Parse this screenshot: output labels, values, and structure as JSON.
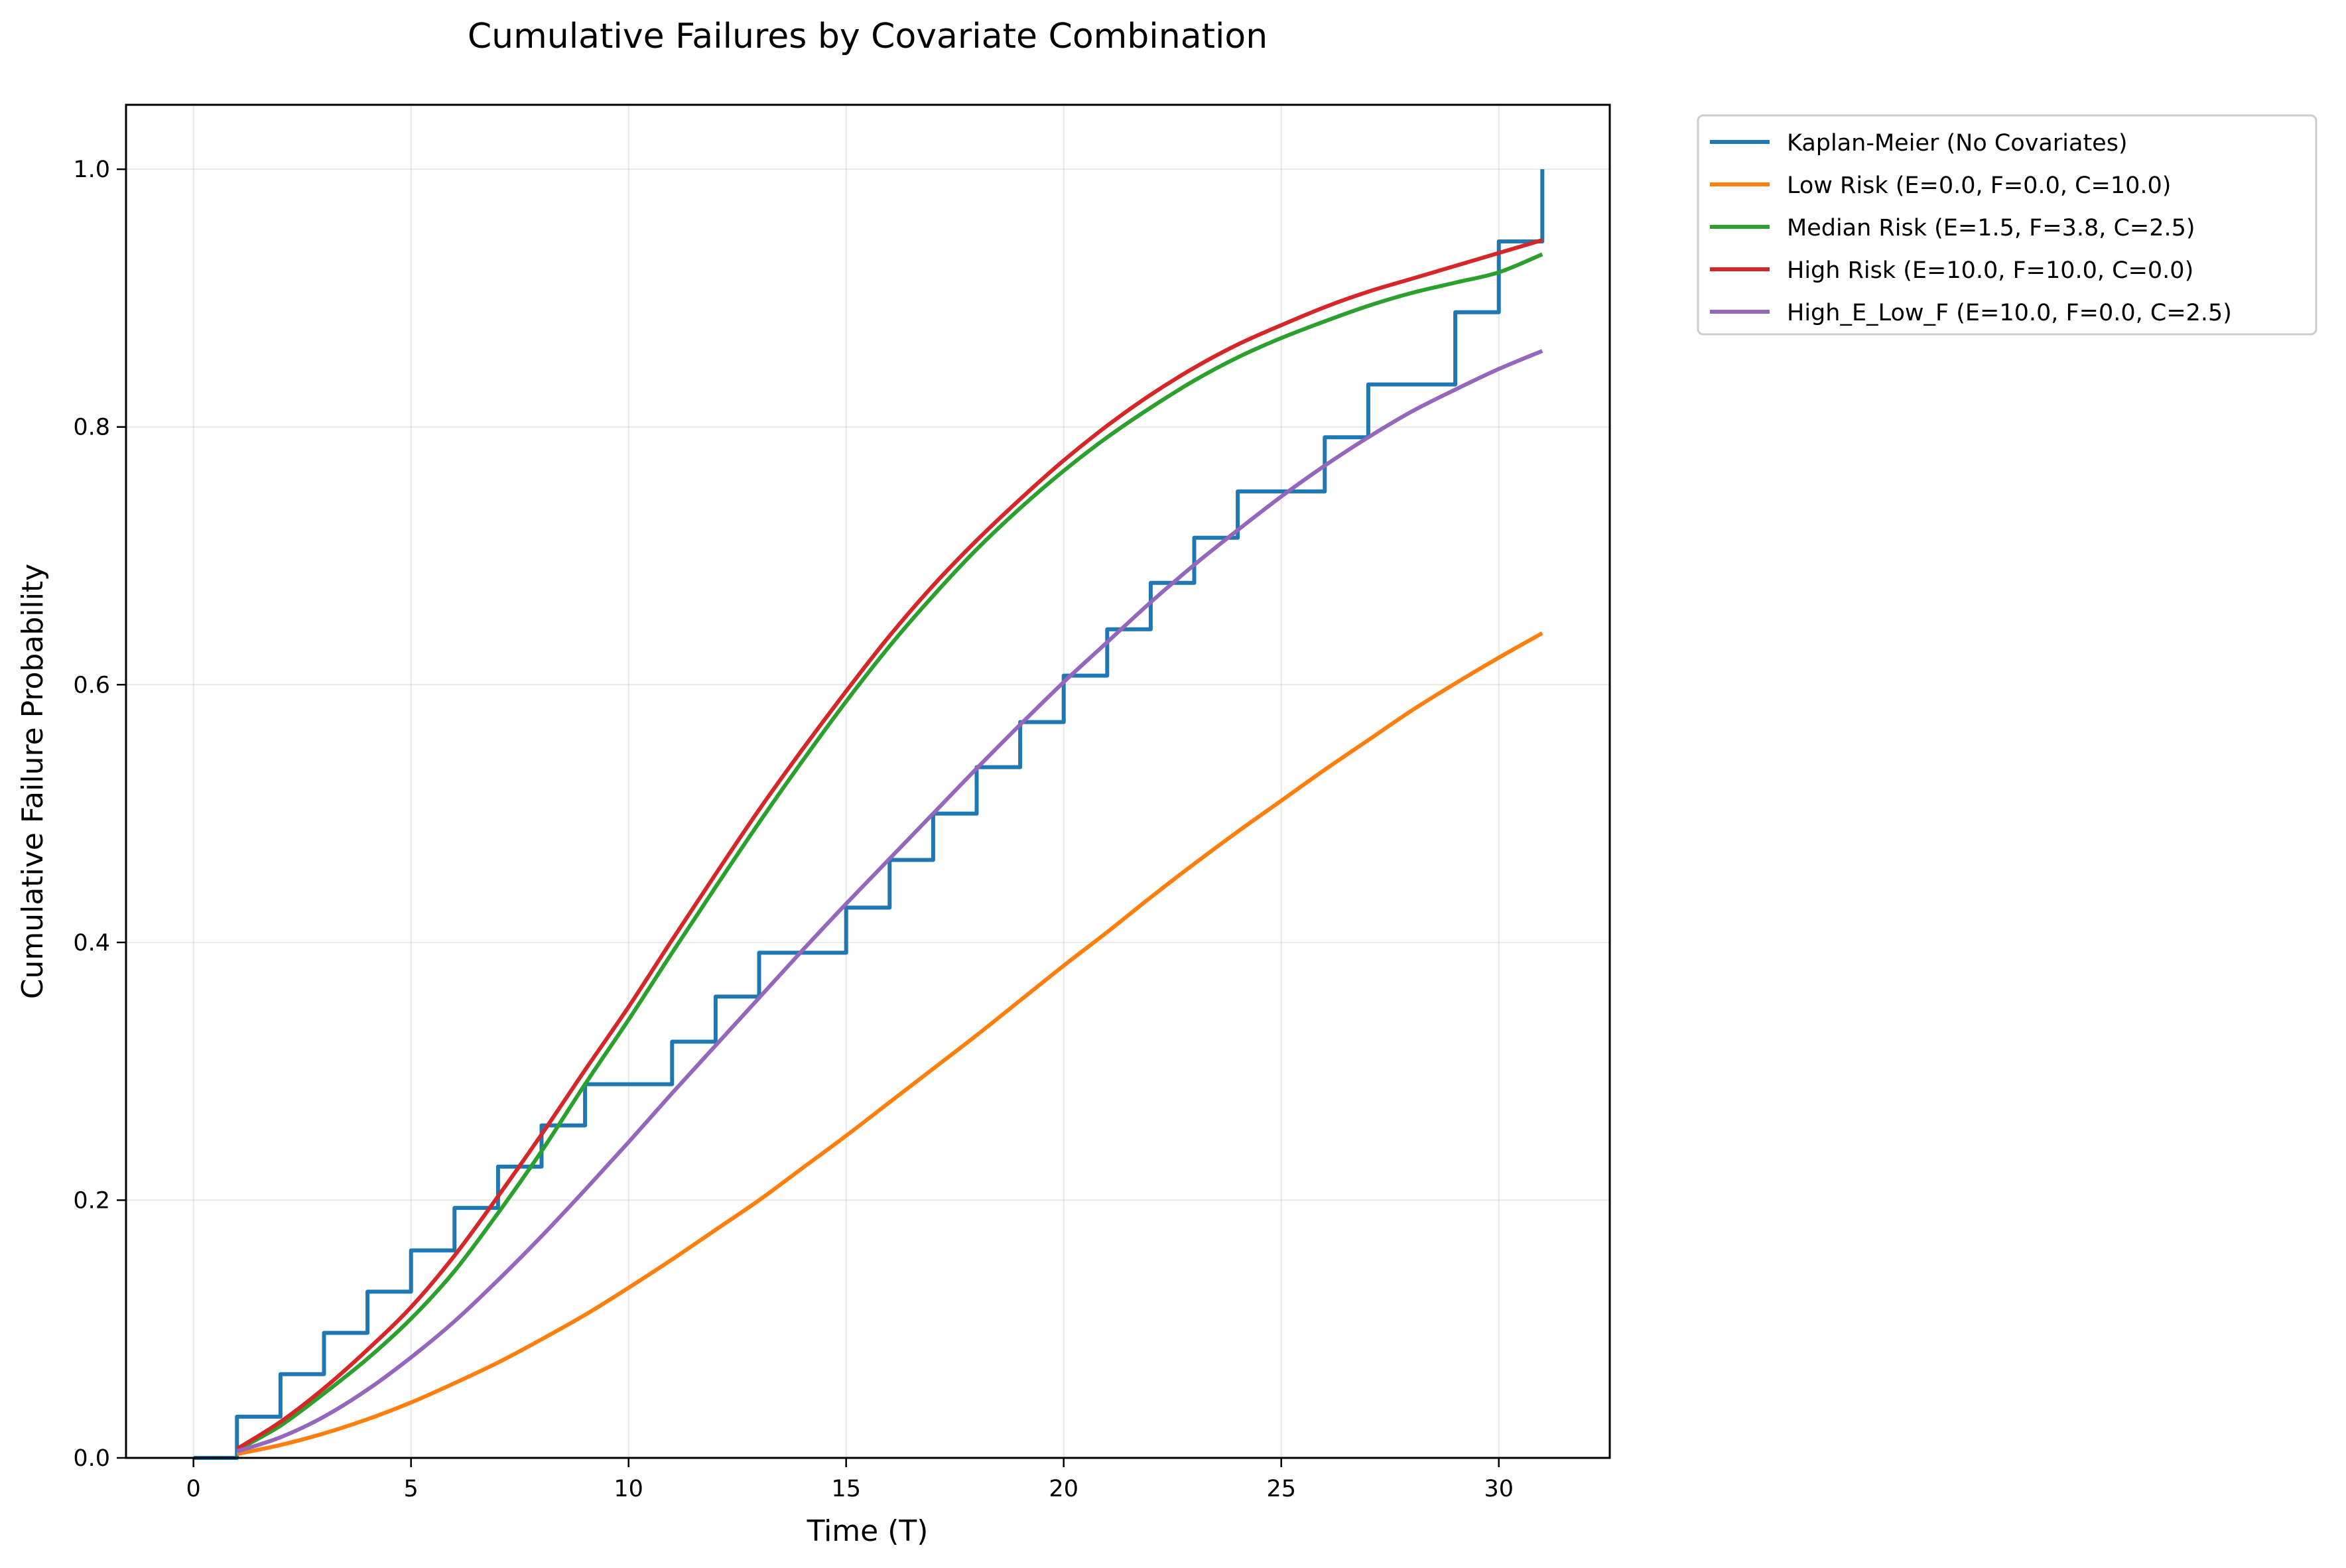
{
  "chart_data": {
    "type": "line",
    "title": "Cumulative Failures by Covariate Combination",
    "xlabel": "Time (T)",
    "ylabel": "Cumulative Failure Probability",
    "xlim": [
      -1.55,
      32.55
    ],
    "ylim": [
      0,
      1.05
    ],
    "xticks": [
      0,
      5,
      10,
      15,
      20,
      25,
      30
    ],
    "xtick_labels": [
      "0",
      "5",
      "10",
      "15",
      "20",
      "25",
      "30"
    ],
    "yticks": [
      0.0,
      0.2,
      0.4,
      0.6,
      0.8,
      1.0
    ],
    "ytick_labels": [
      "0.0",
      "0.2",
      "0.4",
      "0.6",
      "0.8",
      "1.0"
    ],
    "grid": true,
    "legend_position": "outside upper right",
    "series": [
      {
        "name": "Kaplan-Meier (No Covariates)",
        "color": "#1f77b4",
        "style": "step-post",
        "x": [
          0,
          1,
          2,
          3,
          4,
          5,
          6,
          7,
          8,
          9,
          11,
          12,
          13,
          15,
          16,
          17,
          18,
          19,
          20,
          21,
          22,
          23,
          24,
          26,
          27,
          29,
          30,
          31
        ],
        "y": [
          0.0,
          0.032,
          0.065,
          0.097,
          0.129,
          0.161,
          0.194,
          0.226,
          0.258,
          0.29,
          0.323,
          0.358,
          0.392,
          0.427,
          0.464,
          0.5,
          0.536,
          0.571,
          0.607,
          0.643,
          0.679,
          0.714,
          0.75,
          0.792,
          0.833,
          0.889,
          0.944,
          1.0
        ]
      },
      {
        "name": "Low Risk (E=0.0, F=0.0, C=10.0)",
        "color": "#ff7f0e",
        "style": "line",
        "x": [
          1,
          2,
          3,
          4,
          5,
          6,
          7,
          8,
          9,
          10,
          11,
          12,
          13,
          14,
          15,
          16,
          17,
          18,
          19,
          20,
          21,
          22,
          23,
          24,
          25,
          26,
          27,
          28,
          29,
          30,
          31
        ],
        "y": [
          0.003,
          0.01,
          0.019,
          0.03,
          0.043,
          0.058,
          0.074,
          0.092,
          0.111,
          0.132,
          0.154,
          0.177,
          0.2,
          0.225,
          0.25,
          0.276,
          0.302,
          0.328,
          0.355,
          0.382,
          0.408,
          0.435,
          0.461,
          0.486,
          0.51,
          0.534,
          0.557,
          0.58,
          0.601,
          0.621,
          0.64
        ]
      },
      {
        "name": "Median Risk (E=1.5, F=3.8, C=2.5)",
        "color": "#2ca02c",
        "style": "line",
        "x": [
          1,
          2,
          3,
          4,
          5,
          6,
          7,
          8,
          9,
          10,
          11,
          12,
          13,
          14,
          15,
          16,
          17,
          18,
          19,
          20,
          21,
          22,
          23,
          24,
          25,
          26,
          27,
          28,
          29,
          30,
          31
        ],
        "y": [
          0.006,
          0.025,
          0.05,
          0.077,
          0.108,
          0.145,
          0.19,
          0.238,
          0.29,
          0.34,
          0.392,
          0.443,
          0.493,
          0.541,
          0.587,
          0.63,
          0.669,
          0.705,
          0.737,
          0.766,
          0.792,
          0.815,
          0.836,
          0.854,
          0.869,
          0.882,
          0.894,
          0.904,
          0.912,
          0.92,
          0.934
        ]
      },
      {
        "name": "High Risk (E=10.0, F=10.0, C=0.0)",
        "color": "#d62728",
        "style": "line",
        "x": [
          1,
          2,
          3,
          4,
          5,
          6,
          7,
          8,
          9,
          10,
          11,
          12,
          13,
          14,
          15,
          16,
          17,
          18,
          19,
          20,
          21,
          22,
          23,
          24,
          25,
          26,
          27,
          28,
          29,
          30,
          31
        ],
        "y": [
          0.007,
          0.028,
          0.054,
          0.084,
          0.117,
          0.157,
          0.203,
          0.251,
          0.301,
          0.35,
          0.402,
          0.453,
          0.503,
          0.55,
          0.595,
          0.638,
          0.677,
          0.712,
          0.744,
          0.774,
          0.801,
          0.825,
          0.846,
          0.864,
          0.879,
          0.893,
          0.905,
          0.915,
          0.925,
          0.935,
          0.945
        ]
      },
      {
        "name": "High_E_Low_F (E=10.0, F=0.0, C=2.5)",
        "color": "#9467bd",
        "style": "line",
        "x": [
          1,
          2,
          3,
          4,
          5,
          6,
          7,
          8,
          9,
          10,
          11,
          12,
          13,
          14,
          15,
          16,
          17,
          18,
          19,
          20,
          21,
          22,
          23,
          24,
          25,
          26,
          27,
          28,
          29,
          30,
          31
        ],
        "y": [
          0.005,
          0.016,
          0.032,
          0.053,
          0.078,
          0.106,
          0.138,
          0.172,
          0.208,
          0.245,
          0.283,
          0.32,
          0.357,
          0.394,
          0.43,
          0.465,
          0.5,
          0.535,
          0.569,
          0.602,
          0.633,
          0.664,
          0.693,
          0.72,
          0.746,
          0.77,
          0.792,
          0.812,
          0.829,
          0.845,
          0.859
        ]
      }
    ]
  }
}
